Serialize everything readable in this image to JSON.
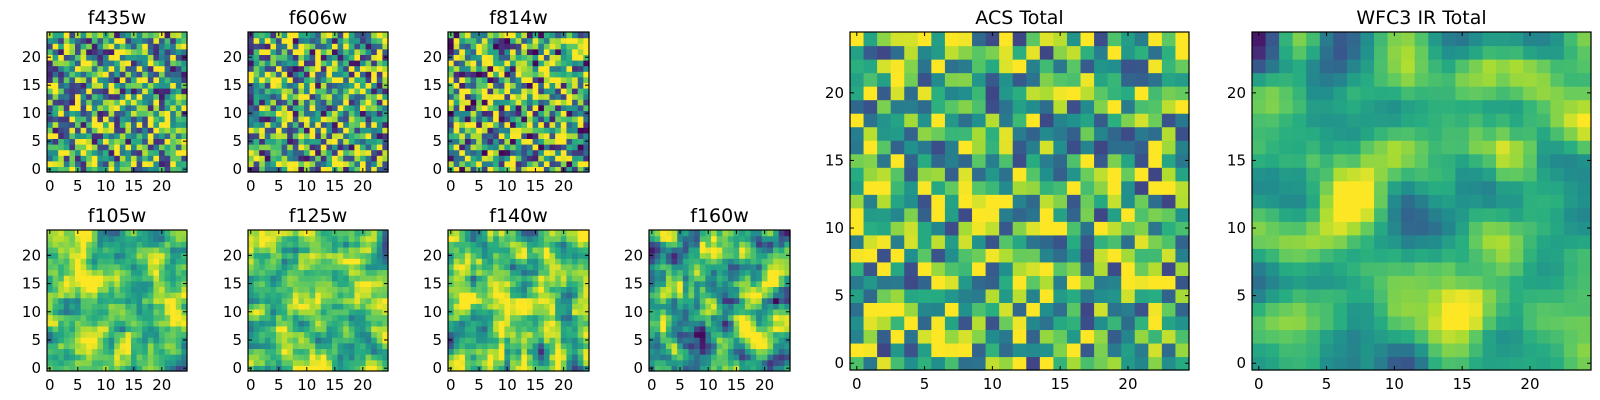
{
  "figure": {
    "background": "#ffffff"
  },
  "chart_data": [
    {
      "type": "heatmap",
      "title": "f435w",
      "grid": false,
      "x_range": [
        0,
        24
      ],
      "y_range": [
        0,
        24
      ],
      "xticks": [
        0,
        5,
        10,
        15,
        20
      ],
      "yticks": [
        0,
        5,
        10,
        15,
        20
      ],
      "colormap": "viridis",
      "seed": 11,
      "smooth": 0,
      "bias": 0.62,
      "spread": 0.55
    },
    {
      "type": "heatmap",
      "title": "f606w",
      "grid": false,
      "x_range": [
        0,
        24
      ],
      "y_range": [
        0,
        24
      ],
      "xticks": [
        0,
        5,
        10,
        15,
        20
      ],
      "yticks": [
        0,
        5,
        10,
        15,
        20
      ],
      "colormap": "viridis",
      "seed": 23,
      "smooth": 0,
      "bias": 0.6,
      "spread": 0.55
    },
    {
      "type": "heatmap",
      "title": "f814w",
      "grid": false,
      "x_range": [
        0,
        24
      ],
      "y_range": [
        0,
        24
      ],
      "xticks": [
        0,
        5,
        10,
        15,
        20
      ],
      "yticks": [
        0,
        5,
        10,
        15,
        20
      ],
      "colormap": "viridis",
      "seed": 37,
      "smooth": 0,
      "bias": 0.6,
      "spread": 0.6
    },
    {
      "type": "heatmap",
      "title": "f105w",
      "grid": false,
      "x_range": [
        0,
        24
      ],
      "y_range": [
        0,
        24
      ],
      "xticks": [
        0,
        5,
        10,
        15,
        20
      ],
      "yticks": [
        0,
        5,
        10,
        15,
        20
      ],
      "colormap": "viridis",
      "seed": 41,
      "smooth": 1,
      "bias": 0.72,
      "spread": 0.5
    },
    {
      "type": "heatmap",
      "title": "f125w",
      "grid": false,
      "x_range": [
        0,
        24
      ],
      "y_range": [
        0,
        24
      ],
      "xticks": [
        0,
        5,
        10,
        15,
        20
      ],
      "yticks": [
        0,
        5,
        10,
        15,
        20
      ],
      "colormap": "viridis",
      "seed": 53,
      "smooth": 1,
      "bias": 0.72,
      "spread": 0.5
    },
    {
      "type": "heatmap",
      "title": "f140w",
      "grid": false,
      "x_range": [
        0,
        24
      ],
      "y_range": [
        0,
        24
      ],
      "xticks": [
        0,
        5,
        10,
        15,
        20
      ],
      "yticks": [
        0,
        5,
        10,
        15,
        20
      ],
      "colormap": "viridis",
      "seed": 67,
      "smooth": 1,
      "bias": 0.68,
      "spread": 0.55
    },
    {
      "type": "heatmap",
      "title": "f160w",
      "grid": false,
      "x_range": [
        0,
        24
      ],
      "y_range": [
        0,
        24
      ],
      "xticks": [
        0,
        5,
        10,
        15,
        20
      ],
      "yticks": [
        0,
        5,
        10,
        15,
        20
      ],
      "colormap": "viridis",
      "seed": 79,
      "smooth": 1,
      "bias": 0.62,
      "spread": 0.6
    },
    {
      "type": "heatmap",
      "title": "ACS Total",
      "grid": false,
      "x_range": [
        0,
        24
      ],
      "y_range": [
        0,
        24
      ],
      "xticks": [
        0,
        5,
        10,
        15,
        20
      ],
      "yticks": [
        0,
        5,
        10,
        15,
        20
      ],
      "colormap": "viridis",
      "seed": 97,
      "smooth": 0,
      "bias": 0.66,
      "spread": 0.45
    },
    {
      "type": "heatmap",
      "title": "WFC3 IR Total",
      "grid": false,
      "x_range": [
        0,
        24
      ],
      "y_range": [
        0,
        24
      ],
      "xticks": [
        0,
        5,
        10,
        15,
        20
      ],
      "yticks": [
        0,
        5,
        10,
        15,
        20
      ],
      "colormap": "viridis",
      "seed": 103,
      "smooth": 2,
      "bias": 0.62,
      "spread": 0.55
    }
  ]
}
